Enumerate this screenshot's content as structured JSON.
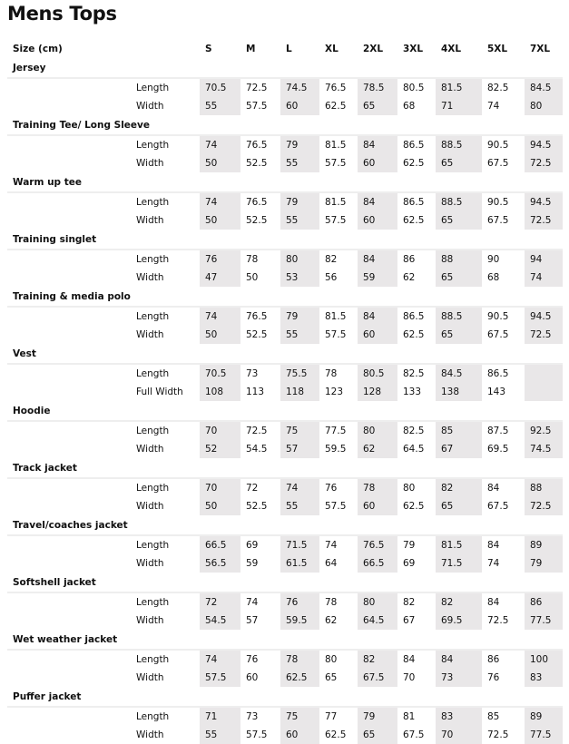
{
  "title": "Mens Tops",
  "header_label": "Size (cm)",
  "sizes": [
    "S",
    "M",
    "L",
    "XL",
    "2XL",
    "3XL",
    "4XL",
    "5XL",
    "7XL"
  ],
  "shaded_color": "#e9e7e8",
  "sections": [
    {
      "name": "Jersey",
      "rows": [
        {
          "label": "Length",
          "values": [
            "70.5",
            "72.5",
            "74.5",
            "76.5",
            "78.5",
            "80.5",
            "81.5",
            "82.5",
            "84.5"
          ]
        },
        {
          "label": "Width",
          "values": [
            "55",
            "57.5",
            "60",
            "62.5",
            "65",
            "68",
            "71",
            "74",
            "80"
          ]
        }
      ]
    },
    {
      "name": "Training Tee/ Long Sleeve",
      "rows": [
        {
          "label": "Length",
          "values": [
            "74",
            "76.5",
            "79",
            "81.5",
            "84",
            "86.5",
            "88.5",
            "90.5",
            "94.5"
          ]
        },
        {
          "label": "Width",
          "values": [
            "50",
            "52.5",
            "55",
            "57.5",
            "60",
            "62.5",
            "65",
            "67.5",
            "72.5"
          ]
        }
      ]
    },
    {
      "name": "Warm up tee",
      "rows": [
        {
          "label": "Length",
          "values": [
            "74",
            "76.5",
            "79",
            "81.5",
            "84",
            "86.5",
            "88.5",
            "90.5",
            "94.5"
          ]
        },
        {
          "label": "Width",
          "values": [
            "50",
            "52.5",
            "55",
            "57.5",
            "60",
            "62.5",
            "65",
            "67.5",
            "72.5"
          ]
        }
      ]
    },
    {
      "name": "Training singlet",
      "rows": [
        {
          "label": "Length",
          "values": [
            "76",
            "78",
            "80",
            "82",
            "84",
            "86",
            "88",
            "90",
            "94"
          ]
        },
        {
          "label": "Width",
          "values": [
            "47",
            "50",
            "53",
            "56",
            "59",
            "62",
            "65",
            "68",
            "74"
          ]
        }
      ]
    },
    {
      "name": "Training & media polo",
      "rows": [
        {
          "label": "Length",
          "values": [
            "74",
            "76.5",
            "79",
            "81.5",
            "84",
            "86.5",
            "88.5",
            "90.5",
            "94.5"
          ]
        },
        {
          "label": "Width",
          "values": [
            "50",
            "52.5",
            "55",
            "57.5",
            "60",
            "62.5",
            "65",
            "67.5",
            "72.5"
          ]
        }
      ]
    },
    {
      "name": "Vest",
      "rows": [
        {
          "label": "Length",
          "values": [
            "70.5",
            "73",
            "75.5",
            "78",
            "80.5",
            "82.5",
            "84.5",
            "86.5",
            ""
          ]
        },
        {
          "label": "Full Width",
          "values": [
            "108",
            "113",
            "118",
            "123",
            "128",
            "133",
            "138",
            "143",
            ""
          ]
        }
      ]
    },
    {
      "name": "Hoodie",
      "rows": [
        {
          "label": "Length",
          "values": [
            "70",
            "72.5",
            "75",
            "77.5",
            "80",
            "82.5",
            "85",
            "87.5",
            "92.5"
          ]
        },
        {
          "label": "Width",
          "values": [
            "52",
            "54.5",
            "57",
            "59.5",
            "62",
            "64.5",
            "67",
            "69.5",
            "74.5"
          ]
        }
      ]
    },
    {
      "name": "Track jacket",
      "rows": [
        {
          "label": "Length",
          "values": [
            "70",
            "72",
            "74",
            "76",
            "78",
            "80",
            "82",
            "84",
            "88"
          ]
        },
        {
          "label": "Width",
          "values": [
            "50",
            "52.5",
            "55",
            "57.5",
            "60",
            "62.5",
            "65",
            "67.5",
            "72.5"
          ]
        }
      ]
    },
    {
      "name": "Travel/coaches  jacket",
      "rows": [
        {
          "label": "Length",
          "values": [
            "66.5",
            "69",
            "71.5",
            "74",
            "76.5",
            "79",
            "81.5",
            "84",
            "89"
          ]
        },
        {
          "label": "Width",
          "values": [
            "56.5",
            "59",
            "61.5",
            "64",
            "66.5",
            "69",
            "71.5",
            "74",
            "79"
          ]
        }
      ]
    },
    {
      "name": "Softshell jacket",
      "rows": [
        {
          "label": "Length",
          "values": [
            "72",
            "74",
            "76",
            "78",
            "80",
            "82",
            "82",
            "84",
            "86"
          ]
        },
        {
          "label": "Width",
          "values": [
            "54.5",
            "57",
            "59.5",
            "62",
            "64.5",
            "67",
            "69.5",
            "72.5",
            "77.5"
          ]
        }
      ]
    },
    {
      "name": "Wet weather jacket",
      "rows": [
        {
          "label": "Length",
          "values": [
            "74",
            "76",
            "78",
            "80",
            "82",
            "84",
            "84",
            "86",
            "100"
          ]
        },
        {
          "label": "Width",
          "values": [
            "57.5",
            "60",
            "62.5",
            "65",
            "67.5",
            "70",
            "73",
            "76",
            "83"
          ]
        }
      ]
    },
    {
      "name": "Puffer jacket",
      "rows": [
        {
          "label": "Length",
          "values": [
            "71",
            "73",
            "75",
            "77",
            "79",
            "81",
            "83",
            "85",
            "89"
          ]
        },
        {
          "label": "Width",
          "values": [
            "55",
            "57.5",
            "60",
            "62.5",
            "65",
            "67.5",
            "70",
            "72.5",
            "77.5"
          ]
        }
      ]
    }
  ]
}
